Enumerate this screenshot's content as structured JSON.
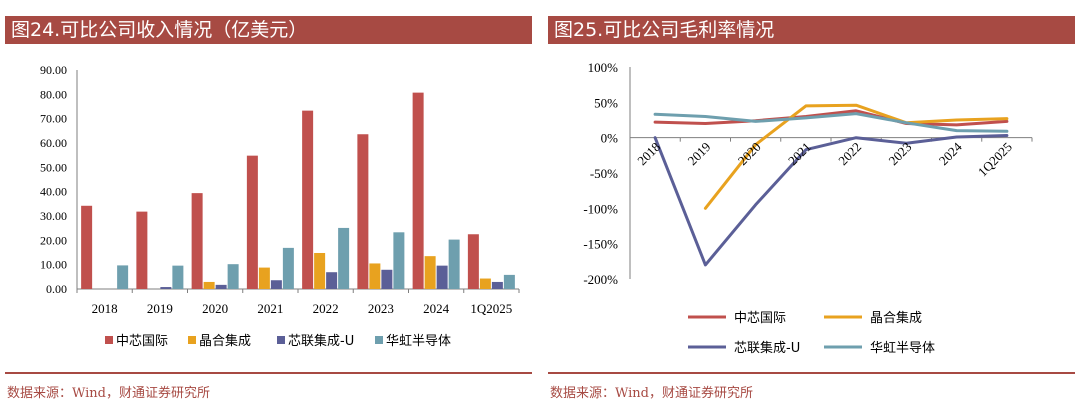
{
  "left": {
    "title": "图24.可比公司收入情况（亿美元）",
    "source": "数据来源：Wind，财通证券研究所"
  },
  "right": {
    "title": "图25.可比公司毛利率情况",
    "source": "数据来源：Wind，财通证券研究所"
  },
  "chart_data": [
    {
      "type": "bar",
      "title": "图24.可比公司收入情况（亿美元）",
      "categories": [
        "2018",
        "2019",
        "2020",
        "2021",
        "2022",
        "2023",
        "2024",
        "1Q2025"
      ],
      "ylim": [
        0,
        90
      ],
      "yticks": [
        "0.00",
        "10.00",
        "20.00",
        "30.00",
        "40.00",
        "50.00",
        "60.00",
        "70.00",
        "80.00",
        "90.00"
      ],
      "grid": false,
      "legend": "bottom",
      "series": [
        {
          "name": "中芯国际",
          "color": "#c0504d",
          "values": [
            34.2,
            31.8,
            39.4,
            54.8,
            73.3,
            63.6,
            80.7,
            22.5
          ]
        },
        {
          "name": "晶合集成",
          "color": "#e8a21f",
          "values": [
            0,
            0,
            2.9,
            8.8,
            14.8,
            10.5,
            13.5,
            4.3
          ]
        },
        {
          "name": "芯联集成-U",
          "color": "#5b5f97",
          "values": [
            0,
            0.8,
            1.7,
            3.6,
            6.9,
            7.9,
            9.6,
            2.9
          ]
        },
        {
          "name": "华虹半导体",
          "color": "#6e9fae",
          "values": [
            9.7,
            9.6,
            10.2,
            16.9,
            25.1,
            23.3,
            20.3,
            5.8
          ]
        }
      ]
    },
    {
      "type": "line",
      "title": "图25.可比公司毛利率情况",
      "categories": [
        "2018",
        "2019",
        "2020",
        "2021",
        "2022",
        "2023",
        "2024",
        "1Q2025"
      ],
      "ylim": [
        -200,
        100
      ],
      "yticks": [
        "-200%",
        "-150%",
        "-100%",
        "-50%",
        "0%",
        "50%",
        "100%"
      ],
      "grid": false,
      "legend": "bottom",
      "series": [
        {
          "name": "中芯国际",
          "color": "#c0504d",
          "values": [
            22,
            20,
            24,
            30,
            38,
            20,
            18,
            23
          ]
        },
        {
          "name": "晶合集成",
          "color": "#e8a21f",
          "values": [
            null,
            -100,
            -10,
            45,
            46,
            21,
            25,
            27
          ]
        },
        {
          "name": "芯联集成-U",
          "color": "#5b5f97",
          "values": [
            0,
            -180,
            -95,
            -17,
            0,
            -8,
            1,
            3
          ]
        },
        {
          "name": "华虹半导体",
          "color": "#6e9fae",
          "values": [
            33,
            30,
            23,
            28,
            34,
            21,
            10,
            9
          ]
        }
      ]
    }
  ]
}
